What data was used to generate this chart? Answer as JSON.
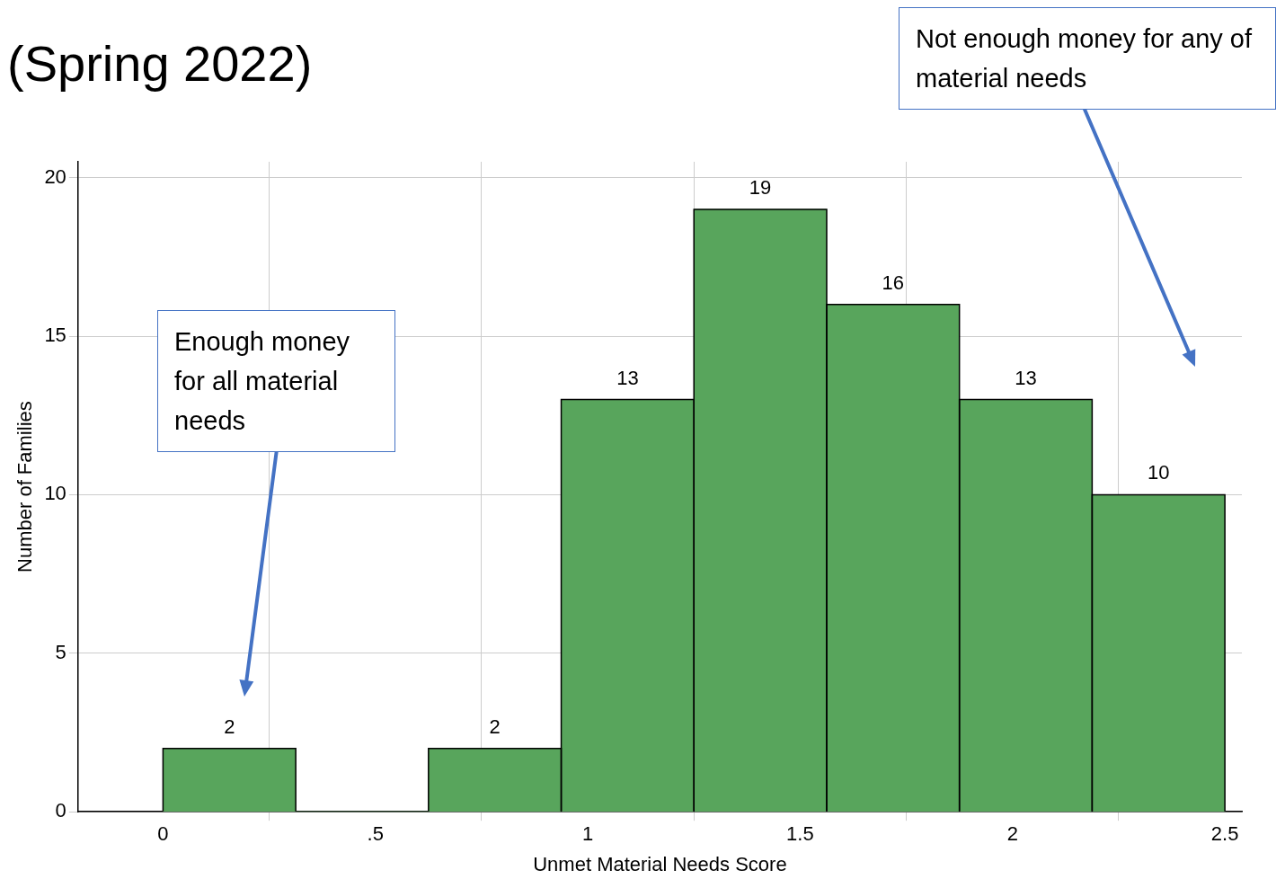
{
  "chart_data": {
    "type": "histogram",
    "title": "(Spring 2022)",
    "xlabel": "Unmet Material Needs Score",
    "ylabel": "Number of Families",
    "bins": [
      0,
      0.3125,
      0.625,
      0.9375,
      1.25,
      1.5625,
      1.875,
      2.1875,
      2.5
    ],
    "values": [
      2,
      0,
      2,
      13,
      19,
      16,
      13,
      10
    ],
    "value_labels": [
      "2",
      null,
      "2",
      "13",
      "19",
      "16",
      "13",
      "10"
    ],
    "color": "#58a55c",
    "xlim": [
      -0.2,
      2.54
    ],
    "xticks": [
      0,
      {
        "value": 0.5,
        "label": ".5"
      },
      1,
      1.5,
      2,
      2.5
    ],
    "ylim": [
      0,
      20.5
    ],
    "yticks": [
      0,
      5,
      10,
      15,
      20
    ],
    "grid": true,
    "legend": false,
    "annotations": [
      "Enough money for all material needs",
      "Not enough money for any of material needs"
    ]
  }
}
